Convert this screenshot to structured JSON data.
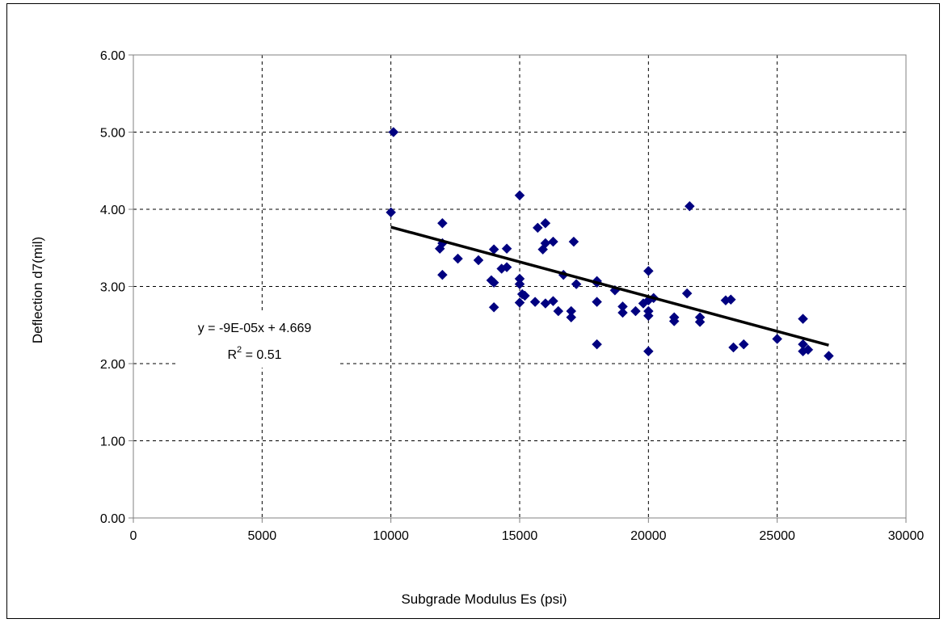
{
  "chart_data": {
    "type": "scatter",
    "title": "",
    "xlabel": "Subgrade Modulus Es (psi)",
    "ylabel": "Deflection d7(mil)",
    "xlim": [
      0,
      30000
    ],
    "ylim": [
      0,
      6
    ],
    "x_ticks": [
      "0",
      "5000",
      "10000",
      "15000",
      "20000",
      "25000",
      "30000"
    ],
    "y_ticks": [
      "0.00",
      "1.00",
      "2.00",
      "3.00",
      "4.00",
      "5.00",
      "6.00"
    ],
    "grid": true,
    "grid_style": "dashed",
    "legend": false,
    "marker": "diamond",
    "marker_color": "#000080",
    "trendline_color": "#000000",
    "trendline": {
      "slope": -9e-05,
      "intercept": 4.669,
      "x_range": [
        10000,
        27000
      ],
      "equation": "y = -9E-05x + 4.669",
      "r2_prefix": "R",
      "r2_sup": "2",
      "r2_suffix": " = 0.51"
    },
    "points": [
      [
        10000,
        3.96
      ],
      [
        10100,
        5.0
      ],
      [
        11900,
        3.49
      ],
      [
        12000,
        3.82
      ],
      [
        12000,
        3.56
      ],
      [
        12000,
        3.15
      ],
      [
        12600,
        3.36
      ],
      [
        13400,
        3.34
      ],
      [
        13900,
        3.08
      ],
      [
        14000,
        3.05
      ],
      [
        14000,
        3.48
      ],
      [
        14000,
        2.73
      ],
      [
        14300,
        3.23
      ],
      [
        14500,
        3.25
      ],
      [
        14500,
        3.49
      ],
      [
        15000,
        4.18
      ],
      [
        15000,
        3.1
      ],
      [
        15000,
        3.03
      ],
      [
        15000,
        2.79
      ],
      [
        15100,
        2.9
      ],
      [
        15200,
        2.88
      ],
      [
        15600,
        2.8
      ],
      [
        15700,
        3.76
      ],
      [
        15900,
        3.48
      ],
      [
        16000,
        3.82
      ],
      [
        16000,
        3.56
      ],
      [
        16000,
        2.78
      ],
      [
        16300,
        3.58
      ],
      [
        16300,
        2.81
      ],
      [
        16500,
        2.68
      ],
      [
        16700,
        3.15
      ],
      [
        17000,
        2.68
      ],
      [
        17000,
        2.6
      ],
      [
        17100,
        3.58
      ],
      [
        17200,
        3.03
      ],
      [
        18000,
        3.07
      ],
      [
        18000,
        3.05
      ],
      [
        18000,
        2.8
      ],
      [
        18000,
        2.25
      ],
      [
        18700,
        2.95
      ],
      [
        19000,
        2.74
      ],
      [
        19000,
        2.66
      ],
      [
        19500,
        2.68
      ],
      [
        19800,
        2.78
      ],
      [
        20000,
        3.2
      ],
      [
        20000,
        2.82
      ],
      [
        20000,
        2.68
      ],
      [
        20000,
        2.62
      ],
      [
        20000,
        2.16
      ],
      [
        20200,
        2.85
      ],
      [
        21000,
        2.6
      ],
      [
        21000,
        2.55
      ],
      [
        21500,
        2.91
      ],
      [
        21600,
        4.04
      ],
      [
        22000,
        2.6
      ],
      [
        22000,
        2.54
      ],
      [
        23000,
        2.82
      ],
      [
        23200,
        2.83
      ],
      [
        23300,
        2.21
      ],
      [
        23700,
        2.25
      ],
      [
        25000,
        2.32
      ],
      [
        26000,
        2.58
      ],
      [
        26000,
        2.25
      ],
      [
        26000,
        2.16
      ],
      [
        26200,
        2.18
      ],
      [
        27000,
        2.1
      ]
    ]
  }
}
